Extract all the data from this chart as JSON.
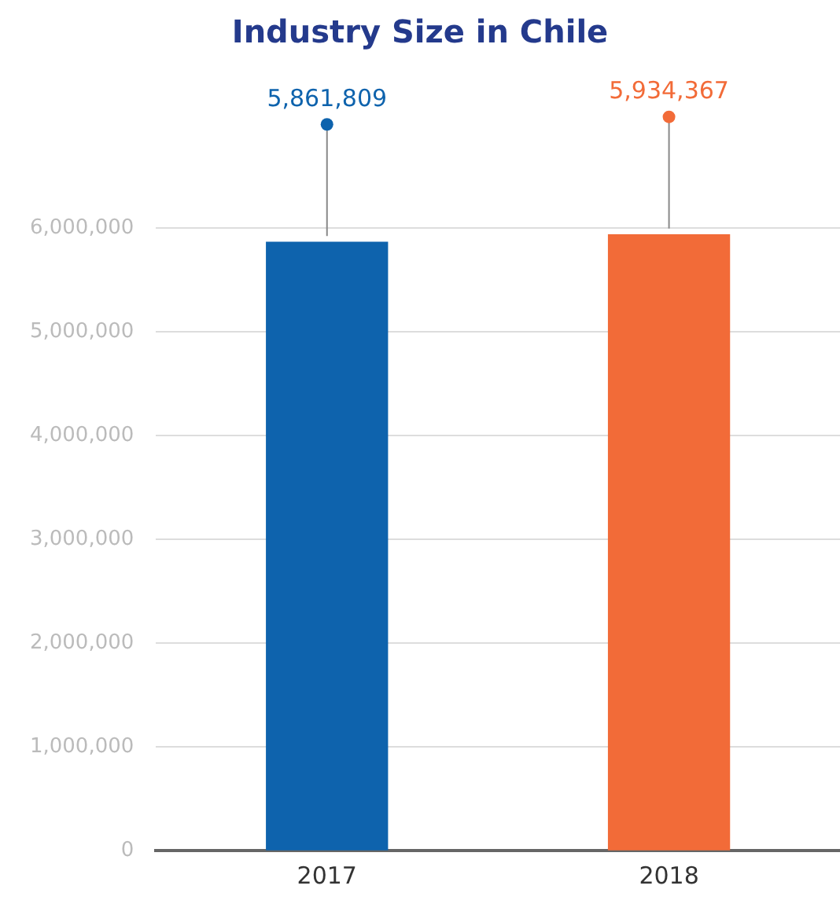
{
  "chart_data": {
    "type": "bar",
    "title": "Industry Size in Chile",
    "categories": [
      "2017",
      "2018"
    ],
    "values": [
      5861809,
      5934367
    ],
    "colors": [
      "#0e63ad",
      "#f26b38"
    ],
    "ylim": [
      0,
      6000000
    ],
    "yticks": [
      {
        "value": 0,
        "label": "0"
      },
      {
        "value": 1000000,
        "label": "1,000,000"
      },
      {
        "value": 2000000,
        "label": "2,000,000"
      },
      {
        "value": 3000000,
        "label": "3,000,000"
      },
      {
        "value": 4000000,
        "label": "4,000,000"
      },
      {
        "value": 5000000,
        "label": "5,000,000"
      },
      {
        "value": 6000000,
        "label": "6,000,000"
      }
    ],
    "value_labels": [
      "5,861,809",
      "5,934,367"
    ],
    "grid": "y",
    "legend": false
  }
}
